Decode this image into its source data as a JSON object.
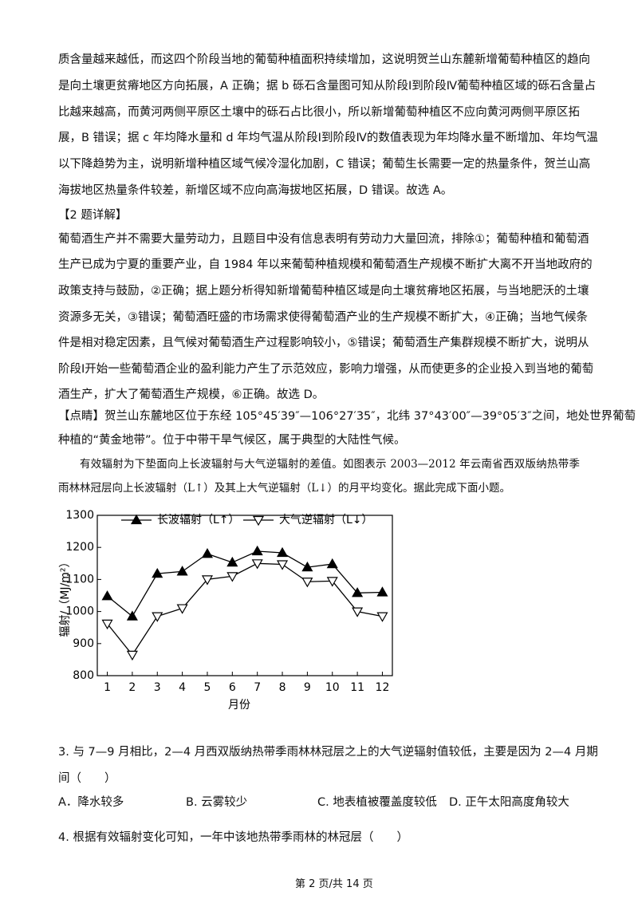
{
  "lines_a": [
    "质含量越来越低，而这四个阶段当地的葡萄种植面积持续增加，这说明贺兰山东麓新增葡萄种植区的趋向",
    "是向土壤更贫瘠地区方向拓展，A 正确；据 b 砾石含量图可知从阶段Ⅰ到阶段Ⅳ葡萄种植区域的砾石含量占",
    "比越来越高，而黄河两侧平原区土壤中的砾石占比很小，所以新增葡萄种植区不应向黄河两侧平原区拓",
    "展，B 错误；据 c 年均降水量和 d 年均气温从阶段Ⅰ到阶段Ⅳ的数值表现为年均降水量不断增加、年均气温",
    "以下降趋势为主，说明新增种植区域气候冷湿化加剧，C 错误；葡萄生长需要一定的热量条件，贺兰山高",
    "海拔地区热量条件较差，新增区域不应向高海拔地区拓展，D 错误。故选 A。"
  ],
  "heading": "【2 题详解】",
  "lines_b": [
    "葡萄酒生产并不需要大量劳动力，且题目中没有信息表明有劳动力大量回流，排除①；葡萄种植和葡萄酒",
    "生产已成为宁夏的重要产业，自 1984 年以来葡萄种植规模和葡萄酒生产规模不断扩大离不开当地政府的",
    "政策支持与鼓励，②正确；据上题分析得知新增葡萄种植区域是向土壤贫瘠地区拓展，与当地肥沃的土壤",
    "资源多无关，③错误；葡萄酒旺盛的市场需求使得葡萄酒产业的生产规模不断扩大，④正确；当地气候条",
    "件是相对稳定因素，且气候对葡萄酒生产过程影响较小，⑤错误；葡萄酒生产集群规模不断扩大，说明从",
    "阶段Ⅰ开始一些葡萄酒企业的盈利能力产生了示范效应，影响力增强，从而使更多的企业投入到当地的葡萄",
    "酒生产，扩大了葡萄酒生产规模，⑥正确。故选 D。"
  ],
  "lines_c": [
    "【点睛】贺兰山东麓地区位于东经 105°45′39″—106°27′35″，北纬 37°43′00″—39°05′3″之间，地处世界葡萄",
    "种植的“黄金地带”。位于中带干旱气候区，属于典型的大陆性气候。"
  ],
  "intro": [
    "有效辐射为下垫面向上长波辐射与大气逆辐射的差值。如图表示 2003—2012 年云南省西双版纳热带季",
    "雨林林冠层向上长波辐射（L↑）及其上大气逆辐射（L↓）的月平均变化。据此完成下面小题。"
  ],
  "chart_data": {
    "type": "line",
    "x_label": "月份",
    "y_label": "辐射/（MJ/m²）",
    "x": [
      1,
      2,
      3,
      4,
      5,
      6,
      7,
      8,
      9,
      10,
      11,
      12
    ],
    "series": [
      {
        "name": "长波辐射（L↑）",
        "color": "#000000",
        "marker": "filled-up",
        "values": [
          1048,
          985,
          1118,
          1125,
          1180,
          1153,
          1188,
          1183,
          1138,
          1148,
          1058,
          1060
        ]
      },
      {
        "name": "大气逆辐射（L↓）",
        "color": "#000000",
        "marker": "open-down",
        "values": [
          962,
          865,
          985,
          1010,
          1100,
          1110,
          1150,
          1147,
          1093,
          1095,
          1000,
          985
        ]
      }
    ],
    "xlim": [
      0.6,
      12.4
    ],
    "xticks": [
      1,
      2,
      3,
      4,
      5,
      6,
      7,
      8,
      9,
      10,
      11,
      12
    ],
    "ylim": [
      800,
      1300
    ],
    "yticks": [
      800,
      900,
      1000,
      1100,
      1200,
      1300
    ],
    "grid": false,
    "legend": "top"
  },
  "question3": {
    "lines": [
      "3. 与 7—9 月相比，2—4 月西双版纳热带季雨林林冠层之上的大气逆辐射值较低，主要是因为 2—4 月期",
      "间（　　）"
    ],
    "options": [
      "A．降水较多",
      "B. 云雾较少",
      "C. 地表植被覆盖度较低",
      "D. 正午太阳高度角较大"
    ]
  },
  "question4": "4. 根据有效辐射变化可知，一年中该地热带季雨林的林冠层（　　）",
  "footer": "第 2 页/共 14 页"
}
